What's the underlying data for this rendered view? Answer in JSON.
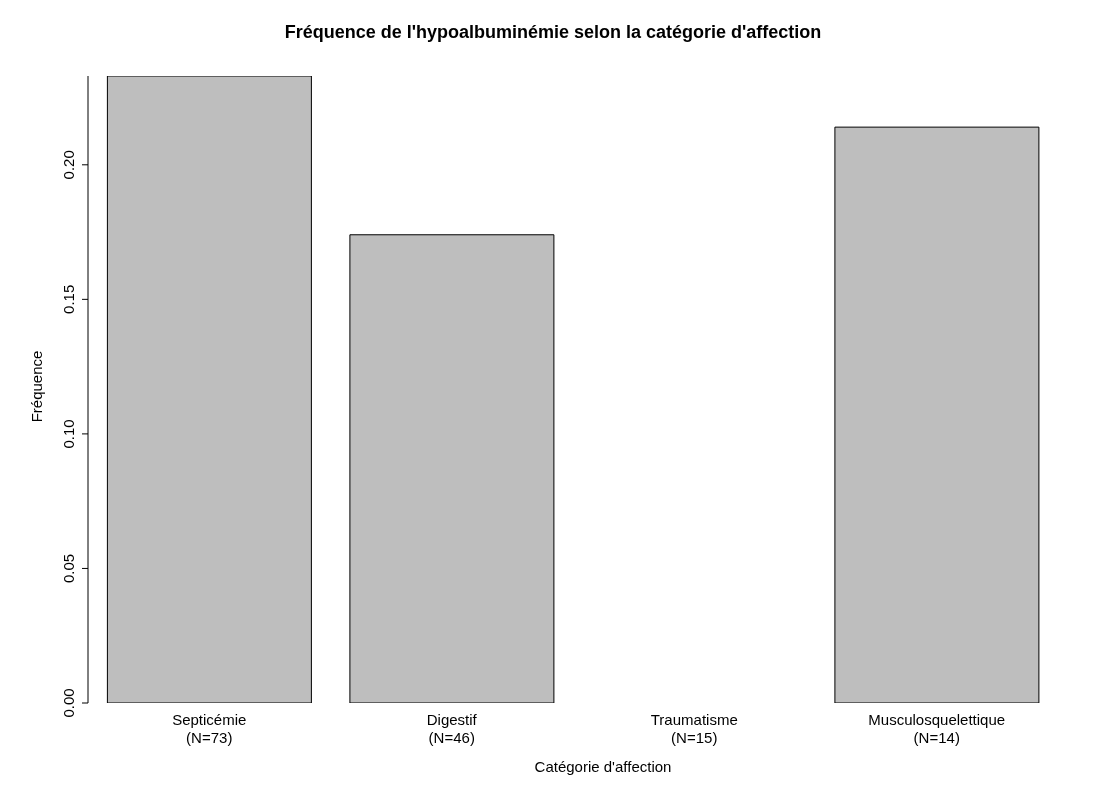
{
  "chart_data": {
    "type": "bar",
    "title": "Fréquence de l'hypoalbuminémie selon la catégorie d'affection",
    "xlabel": "Catégorie d'affection",
    "ylabel": "Fréquence",
    "categories": [
      "Septicémie\n(N=73)",
      "Digestif\n(N=46)",
      "Traumatisme\n(N=15)",
      "Musculosquelettique\n(N=14)"
    ],
    "values": [
      0.233,
      0.174,
      0,
      0.214
    ],
    "color": "#bebebe",
    "ylim": [
      0,
      0.233
    ],
    "yticks": [
      {
        "value": 0,
        "label": "0.00"
      },
      {
        "value": 0.05,
        "label": "0.05"
      },
      {
        "value": 0.1,
        "label": "0.10"
      },
      {
        "value": 0.15,
        "label": "0.15"
      },
      {
        "value": 0.2,
        "label": "0.20"
      }
    ],
    "grid": false,
    "legend": false
  }
}
